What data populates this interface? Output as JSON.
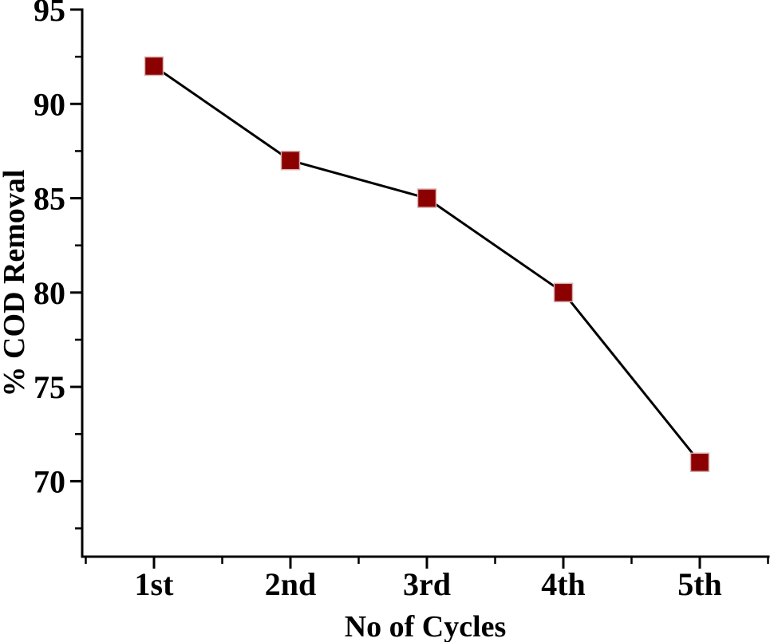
{
  "page": {
    "background_color": "#ffffff"
  },
  "chart_data": {
    "type": "line",
    "title": "",
    "categories": [
      "1st",
      "2nd",
      "3rd",
      "4th",
      "5th"
    ],
    "values": [
      92,
      87,
      85,
      80,
      71
    ],
    "series_name": "% COD Removal",
    "xlabel": "No of Cycles",
    "ylabel": "% COD Removal",
    "ylim": [
      66,
      95
    ],
    "yticks_major": [
      95,
      90,
      85,
      80,
      75,
      70
    ],
    "yticks_minor": [
      92.5,
      87.5,
      82.5,
      77.5,
      72.5,
      67.5
    ],
    "x_minor_ticks": "category-boundaries",
    "grid": false,
    "legend": "none",
    "axis_sides": [
      "left",
      "bottom"
    ],
    "axis_color": "#000000",
    "text_color": "#000000",
    "line_color": "#000000",
    "line_width": 3,
    "marker_shape": "square",
    "marker_size": 23,
    "marker_color": "#8B0000",
    "marker_edge_color": "#d9b0b0"
  }
}
